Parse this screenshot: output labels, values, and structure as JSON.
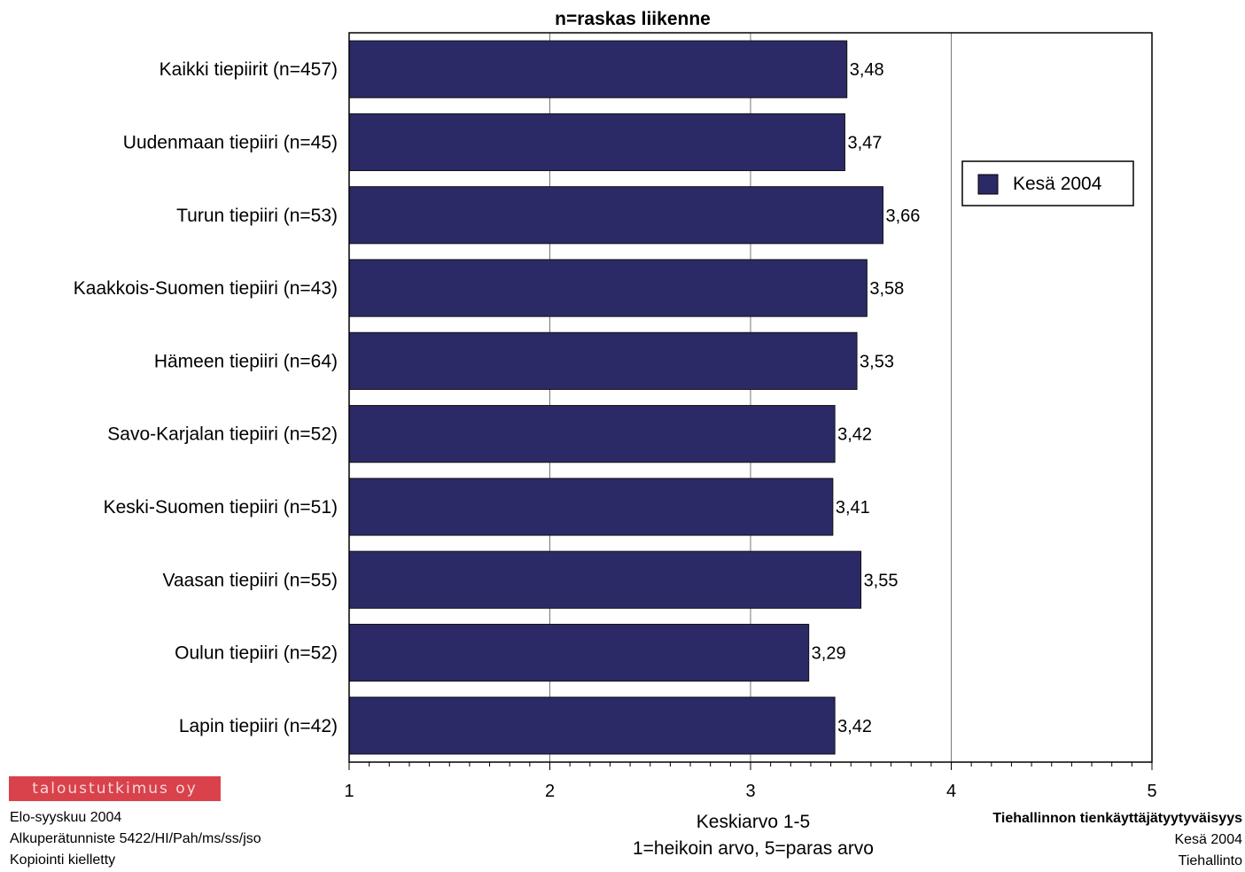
{
  "chart_data": {
    "type": "bar",
    "orientation": "horizontal",
    "title": "n=raskas liikenne",
    "categories": [
      "Kaikki tiepiirit (n=457)",
      "Uudenmaan tiepiiri (n=45)",
      "Turun tiepiiri (n=53)",
      "Kaakkois-Suomen tiepiiri (n=43)",
      "Hämeen tiepiiri (n=64)",
      "Savo-Karjalan tiepiiri (n=52)",
      "Keski-Suomen tiepiiri (n=51)",
      "Vaasan tiepiiri (n=55)",
      "Oulun tiepiiri (n=52)",
      "Lapin tiepiiri (n=42)"
    ],
    "series": [
      {
        "name": "Kesä 2004",
        "color": "#2b2a67",
        "values": [
          3.48,
          3.47,
          3.66,
          3.58,
          3.53,
          3.42,
          3.41,
          3.55,
          3.29,
          3.42
        ],
        "labels": [
          "3,48",
          "3,47",
          "3,66",
          "3,58",
          "3,53",
          "3,42",
          "3,41",
          "3,55",
          "3,29",
          "3,42"
        ]
      }
    ],
    "xlabel_lines": [
      "Keskiarvo 1-5",
      "1=heikoin arvo, 5=paras arvo"
    ],
    "xlim": [
      1,
      5
    ],
    "xticks": [
      "1",
      "2",
      "3",
      "4",
      "5"
    ],
    "grid": true,
    "legend_position": "top-right"
  },
  "footer": {
    "logo": "taloustutkimus oy",
    "left_lines": [
      "Elo-syyskuu 2004",
      "Alkuperätunniste 5422/HI/Pah/ms/ss/jso",
      "Kopiointi kielletty"
    ],
    "right_title": "Tiehallinnon tienkäyttäjätyytyväisyys",
    "right_lines": [
      "Kesä 2004",
      "Tiehallinto"
    ]
  }
}
